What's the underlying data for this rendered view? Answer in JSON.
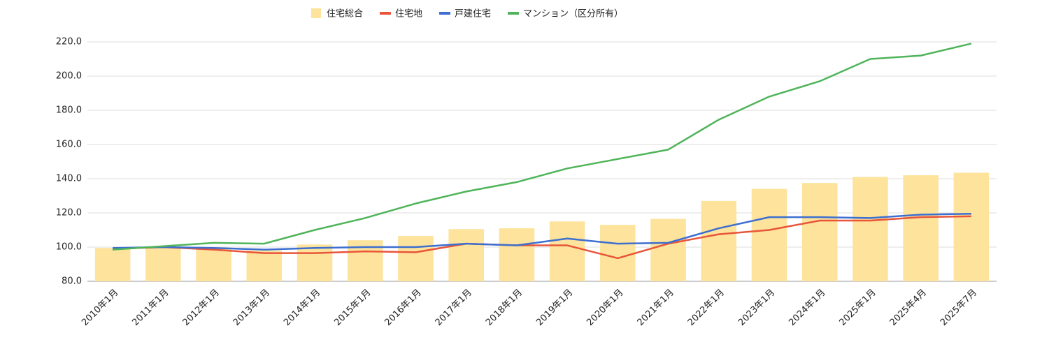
{
  "chart_data": {
    "type": "combo",
    "categories": [
      "2010年1月",
      "2011年1月",
      "2012年1月",
      "2013年1月",
      "2014年1月",
      "2015年1月",
      "2016年1月",
      "2017年1月",
      "2018年1月",
      "2019年1月",
      "2020年1月",
      "2021年1月",
      "2022年1月",
      "2023年1月",
      "2024年1月",
      "2025年1月",
      "2025年4月",
      "2025年7月"
    ],
    "series": [
      {
        "name": "住宅総合",
        "type": "bar",
        "color": "#fde39b",
        "values": [
          99.5,
          100.5,
          99.5,
          98,
          101.5,
          104,
          106.5,
          110.5,
          111,
          115,
          113,
          116.5,
          127,
          134,
          137.5,
          141,
          142,
          143.5
        ]
      },
      {
        "name": "住宅地",
        "type": "line",
        "color": "#e8553a",
        "values": [
          99,
          100,
          98.5,
          96.5,
          96.5,
          97.5,
          97,
          102,
          101,
          101,
          93.5,
          102,
          107.5,
          110,
          115.5,
          115.5,
          117.5,
          118
        ]
      },
      {
        "name": "戸建住宅",
        "type": "line",
        "color": "#3d6fd0",
        "values": [
          99.5,
          100,
          99.5,
          98.5,
          99.5,
          100,
          100,
          102,
          101,
          105,
          102,
          102.5,
          111,
          117.5,
          117.5,
          117,
          119,
          119.5
        ]
      },
      {
        "name": "マンション（区分所有）",
        "type": "line",
        "color": "#4fb45a",
        "values": [
          98.5,
          100.5,
          102.5,
          102,
          110,
          117,
          125.5,
          132.5,
          138,
          146,
          151.5,
          157,
          174.5,
          188,
          197,
          210,
          212,
          219
        ]
      }
    ],
    "ylim": [
      80,
      220
    ],
    "yticks": [
      {
        "value": 80,
        "label": "80.0"
      },
      {
        "value": 100,
        "label": "100.0"
      },
      {
        "value": 120,
        "label": "120.0"
      },
      {
        "value": 140,
        "label": "140.0"
      },
      {
        "value": 160,
        "label": "160.0"
      },
      {
        "value": 180,
        "label": "180.0"
      },
      {
        "value": 200,
        "label": "200.0"
      },
      {
        "value": 220,
        "label": "220.0"
      }
    ],
    "grid": true,
    "legend": "top"
  }
}
